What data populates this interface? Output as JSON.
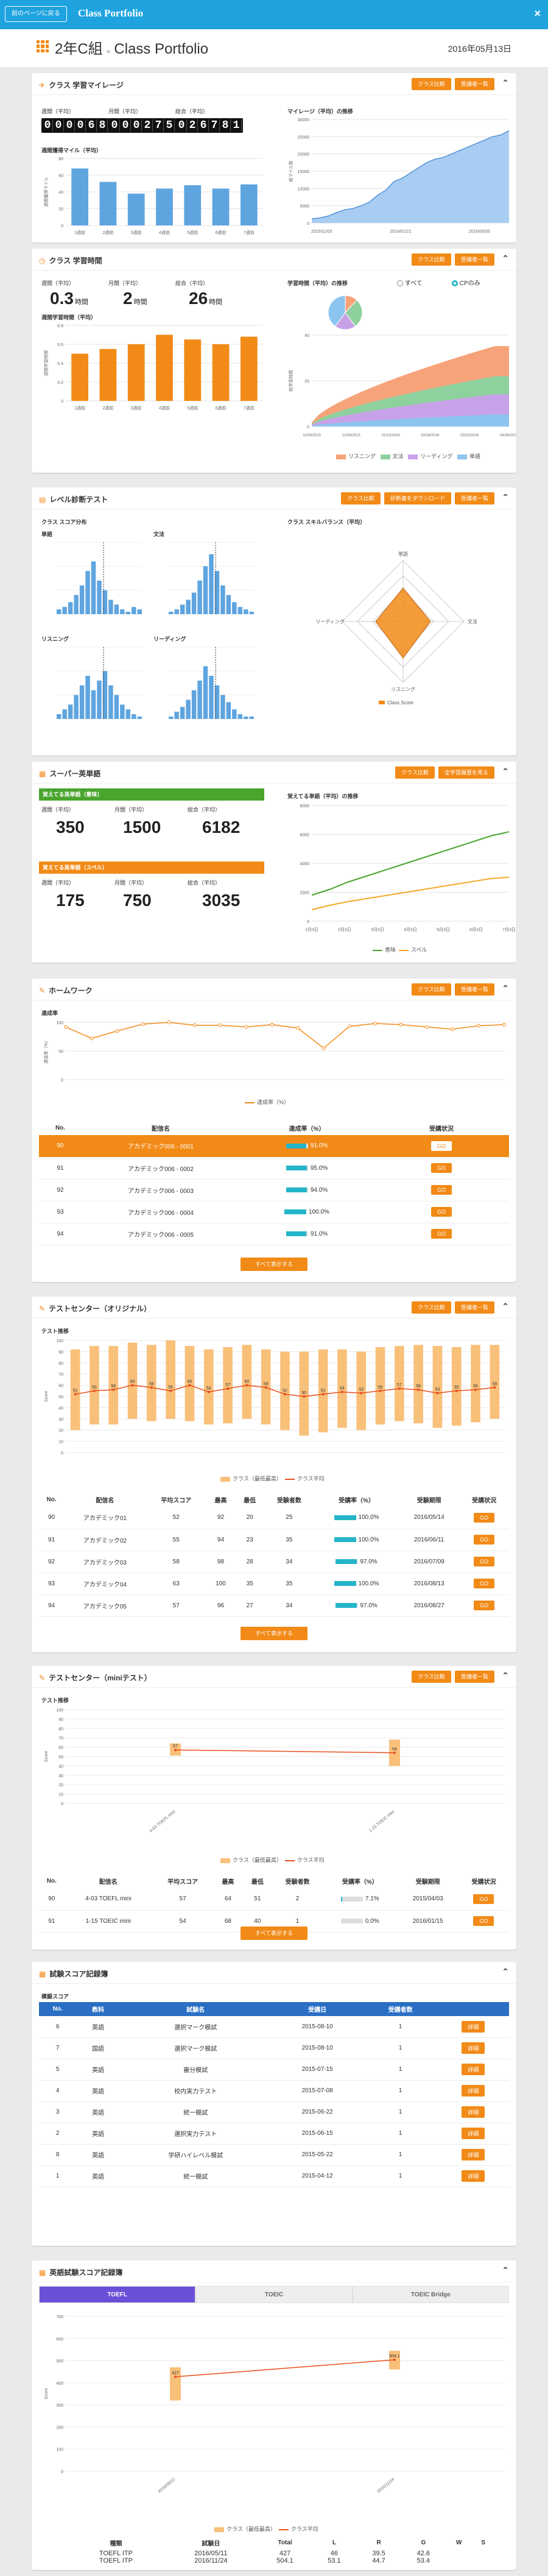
{
  "header": {
    "back": "前のページに戻る",
    "title": "Class Portfolio",
    "close": "×"
  },
  "page": {
    "class_name": "2年C組",
    "sep": "»",
    "portfolio": "Class Portfolio",
    "date": "2016年05月13日"
  },
  "mileage": {
    "title": "クラス 学習マイレージ",
    "btn1": "クラス比較",
    "btn2": "受講者一覧",
    "weekly_label": "週間（平均）",
    "monthly_label": "月間（平均）",
    "total_label": "総合（平均）",
    "weekly": "000068",
    "monthly": "000275",
    "total": "026781",
    "bar_title": "週間獲得マイル（平均）",
    "ylabel": "週間獲得マイル",
    "line_title": "マイレージ（平均）の推移",
    "line_ylabel": "総マイル数",
    "chart_data": {
      "type": "bar",
      "categories": [
        "1週前",
        "2週前",
        "3週前",
        "4週前",
        "5週前",
        "6週前",
        "7週前"
      ],
      "values": [
        68,
        52,
        38,
        44,
        48,
        44,
        49
      ],
      "ylim": [
        0,
        80
      ],
      "yticks": [
        "80",
        "60",
        "40",
        "20",
        "0"
      ]
    },
    "line_data": {
      "type": "area",
      "ylim": [
        0,
        30000
      ],
      "yticks": [
        "30000",
        "25000",
        "20000",
        "15000",
        "10000",
        "5000",
        "0"
      ],
      "xticks": [
        "2015/11/03",
        "2016/01/21",
        "2016/05/05"
      ],
      "y": [
        1200,
        1500,
        2000,
        3000,
        3800,
        4200,
        5000,
        6000,
        8000,
        9500,
        12000,
        13000,
        14500,
        16000,
        17500,
        18500,
        19000,
        20000,
        21000,
        22000,
        23000,
        24000,
        25000,
        25500,
        26781
      ]
    },
    "btn3": "クラス比較",
    "btn4": "受講者一覧"
  },
  "study": {
    "title": "クラス 学習時間",
    "btn1": "クラス比較",
    "btn2": "受講者一覧",
    "weekly_label": "週間（平均）",
    "monthly_label": "月間（平均）",
    "total_label": "総合（平均）",
    "weekly": "0.3",
    "monthly": "2",
    "total": "26",
    "unit": "時間",
    "bar_title": "週間学習時間（平均）",
    "ylabel": "週間学習時間",
    "chart_data": {
      "type": "bar",
      "categories": [
        "1週前",
        "2週前",
        "3週前",
        "4週前",
        "5週前",
        "6週前",
        "7週前"
      ],
      "values": [
        0.5,
        0.55,
        0.6,
        0.7,
        0.65,
        0.6,
        0.68
      ],
      "ylim": [
        0,
        0.8
      ],
      "yticks": [
        "0.8",
        "0.6",
        "0.4",
        "0.2",
        "0"
      ]
    },
    "trend_title": "学習時間（平均）の推移",
    "radio1": "すべて",
    "radio2": "CPのみ",
    "area_ylabel": "総学習時間",
    "area_data": {
      "type": "area",
      "xticks": [
        "11/03/2015",
        "12/08/2015",
        "01/12/2016",
        "02/16/2016",
        "03/22/2016",
        "04/26/2016"
      ],
      "ylim": [
        0,
        40
      ],
      "yticks": [
        "40",
        "20",
        "0"
      ]
    },
    "legend": [
      "リスニング",
      "文法",
      "リーディング",
      "単語"
    ]
  },
  "level": {
    "title": "レベル診断テスト",
    "btn1": "クラス比較",
    "btn2": "診断書をダウンロード",
    "btn3": "受講者一覧",
    "dist_title": "クラス スコア分布",
    "skills_title": "クラス スキルバランス（平均）",
    "sub": [
      "単語",
      "文法",
      "リスニング",
      "リーディング"
    ],
    "radar": {
      "axes": [
        "単語",
        "文法",
        "リスニング",
        "リーディング"
      ],
      "legend": "Class Score"
    }
  },
  "super": {
    "title": "スーパー英単語",
    "btn1": "クラス比較",
    "btn2": "全学習履歴を見る",
    "green_label": "覚えてる英単語（意味）",
    "orange_label": "覚えてる英単語（スペル）",
    "weekly_label": "週間（平均）",
    "monthly_label": "月間（平均）",
    "total_label": "総合（平均）",
    "m_weekly": "350",
    "m_monthly": "1500",
    "m_total": "6182",
    "s_weekly": "175",
    "s_monthly": "750",
    "s_total": "3035",
    "chart_title": "覚えてる単語（平均）の推移",
    "chart_data": {
      "type": "line",
      "ylim": [
        0,
        8000
      ],
      "yticks": [
        "8000",
        "6000",
        "4000",
        "2000",
        "0"
      ],
      "xticks": [
        "1月3日",
        "2月3日",
        "3月3日",
        "4月3日",
        "5月3日",
        "6月3日",
        "7月3日"
      ],
      "series": [
        {
          "name": "意味",
          "values": [
            1800,
            2200,
            2700,
            3100,
            3500,
            3900,
            4300,
            4700,
            5100,
            5500,
            5900,
            6182
          ]
        },
        {
          "name": "スペル",
          "values": [
            800,
            1100,
            1350,
            1550,
            1750,
            1950,
            2150,
            2350,
            2550,
            2750,
            2950,
            3035
          ]
        }
      ]
    }
  },
  "homework": {
    "title": "ホームワーク",
    "btn1": "クラス比較",
    "btn2": "受講者一覧",
    "chart_title": "達成率",
    "ylabel": "達成率（%）",
    "legend": "達成率（%）",
    "chart_data": {
      "type": "line",
      "ylim": [
        0,
        100
      ],
      "yticks": [
        "100",
        "50",
        "0"
      ],
      "values": [
        92,
        72,
        85,
        97,
        100,
        95,
        95,
        92,
        96,
        90,
        55,
        93,
        98,
        96,
        92,
        88,
        94,
        96
      ]
    },
    "cols": [
      "No.",
      "配信名",
      "達成率（%）",
      "受講状況"
    ],
    "rows": [
      {
        "no": "90",
        "name": "アカデミック006 - 0001",
        "rate": "91.0%",
        "pct": 91,
        "btn": "GO"
      },
      {
        "no": "91",
        "name": "アカデミック006 - 0002",
        "rate": "95.0%",
        "pct": 95,
        "btn": "GO"
      },
      {
        "no": "92",
        "name": "アカデミック006 - 0003",
        "rate": "94.0%",
        "pct": 94,
        "btn": "GO"
      },
      {
        "no": "93",
        "name": "アカデミック006 - 0004",
        "rate": "100.0%",
        "pct": 100,
        "btn": "GO"
      },
      {
        "no": "94",
        "name": "アカデミック006 - 0005",
        "rate": "91.0%",
        "pct": 91,
        "btn": "GO"
      }
    ],
    "showall": "すべて表示する"
  },
  "testcenter": {
    "title": "テストセンター（オリジナル）",
    "btn1": "クラス比較",
    "btn2": "受講者一覧",
    "chart_title": "テスト推移",
    "ylabel": "Score",
    "legend1": "クラス（最低最高）",
    "legend2": "クラス平均",
    "chart_data": {
      "type": "bar",
      "ylim": [
        0,
        100
      ],
      "avg": [
        52,
        55,
        56,
        60,
        58,
        55,
        60,
        54,
        57,
        60,
        58,
        52,
        50,
        52,
        54,
        53,
        55,
        57,
        56,
        53,
        55,
        56,
        58
      ],
      "low": [
        20,
        25,
        25,
        30,
        28,
        30,
        28,
        25,
        26,
        30,
        25,
        20,
        15,
        18,
        22,
        20,
        25,
        28,
        26,
        22,
        24,
        27,
        30
      ],
      "high": [
        92,
        95,
        95,
        98,
        96,
        100,
        95,
        92,
        94,
        96,
        92,
        90,
        90,
        92,
        92,
        90,
        94,
        95,
        96,
        95,
        94,
        96,
        96
      ]
    },
    "cols": [
      "No.",
      "配信名",
      "平均スコア",
      "最高",
      "最低",
      "受験者数",
      "受講率（%）",
      "受験期限",
      "受講状況"
    ],
    "rows": [
      {
        "no": "90",
        "name": "アカデミック01",
        "avg": "52",
        "max": "92",
        "min": "20",
        "count": "25",
        "rate": "100.0%",
        "pct": 100,
        "due": "2016/05/14",
        "btn": "GO"
      },
      {
        "no": "91",
        "name": "アカデミック02",
        "avg": "55",
        "max": "94",
        "min": "23",
        "count": "35",
        "rate": "100.0%",
        "pct": 100,
        "due": "2016/06/11",
        "btn": "GO"
      },
      {
        "no": "92",
        "name": "アカデミック03",
        "avg": "58",
        "max": "98",
        "min": "28",
        "count": "34",
        "rate": "97.0%",
        "pct": 97,
        "due": "2016/07/09",
        "btn": "GO"
      },
      {
        "no": "93",
        "name": "アカデミック04",
        "avg": "63",
        "max": "100",
        "min": "35",
        "count": "35",
        "rate": "100.0%",
        "pct": 100,
        "due": "2016/08/13",
        "btn": "GO"
      },
      {
        "no": "94",
        "name": "アカデミック05",
        "avg": "57",
        "max": "96",
        "min": "27",
        "count": "34",
        "rate": "97.0%",
        "pct": 97,
        "due": "2016/08/27",
        "btn": "GO"
      }
    ],
    "showall": "すべて表示する"
  },
  "mini": {
    "title": "テストセンター（miniテスト）",
    "btn1": "クラス比較",
    "btn2": "受講者一覧",
    "chart_title": "テスト推移",
    "ylabel": "Score",
    "legend1": "クラス（最低最高）",
    "legend2": "クラス平均",
    "chart_data": {
      "type": "bar",
      "ylim": [
        0,
        100
      ],
      "categories": [
        "4-03 TOEFL mini",
        "1-15 TOEIC mini"
      ],
      "avg": [
        57,
        54
      ],
      "low": [
        51,
        40
      ],
      "high": [
        64,
        68
      ]
    },
    "cols": [
      "No.",
      "配信名",
      "平均スコア",
      "最高",
      "最低",
      "受験者数",
      "受講率（%）",
      "受験期限",
      "受講状況"
    ],
    "rows": [
      {
        "no": "90",
        "name": "4-03 TOEFL mini",
        "avg": "57",
        "max": "64",
        "min": "51",
        "count": "2",
        "rate": "7.1%",
        "pct": 7,
        "due": "2015/04/03",
        "btn": "GO"
      },
      {
        "no": "91",
        "name": "1-15 TOEIC mini",
        "avg": "54",
        "max": "68",
        "min": "40",
        "count": "1",
        "rate": "0.0%",
        "pct": 0,
        "due": "2016/01/15",
        "btn": "GO"
      }
    ],
    "showall": "すべて表示する"
  },
  "scores": {
    "title": "試験スコア記録簿",
    "sub": "模擬スコア",
    "cols": [
      "No.",
      "教科",
      "試験名",
      "受講日",
      "受講者数",
      ""
    ],
    "rows": [
      {
        "no": "6",
        "subj": "英語",
        "name": "選択マーク模試",
        "date": "2015-08-10",
        "count": "1",
        "btn": "詳細"
      },
      {
        "no": "7",
        "subj": "国語",
        "name": "選択マーク模試",
        "date": "2015-08-10",
        "count": "1",
        "btn": "詳細"
      },
      {
        "no": "5",
        "subj": "英語",
        "name": "審分模試",
        "date": "2015-07-15",
        "count": "1",
        "btn": "詳細"
      },
      {
        "no": "4",
        "subj": "英語",
        "name": "校内実力テスト",
        "date": "2015-07-08",
        "count": "1",
        "btn": "詳細"
      },
      {
        "no": "3",
        "subj": "英語",
        "name": "統一模試",
        "date": "2015-06-22",
        "count": "1",
        "btn": "詳細"
      },
      {
        "no": "2",
        "subj": "英語",
        "name": "選択実力テスト",
        "date": "2015-06-15",
        "count": "1",
        "btn": "詳細"
      },
      {
        "no": "8",
        "subj": "英語",
        "name": "学研ハイレベル模試",
        "date": "2015-05-22",
        "count": "1",
        "btn": "詳細"
      },
      {
        "no": "1",
        "subj": "英語",
        "name": "統一模試",
        "date": "2015-04-12",
        "count": "1",
        "btn": "詳細"
      }
    ]
  },
  "english": {
    "title": "英語試験スコア記録簿",
    "tabs": [
      "TOEFL",
      "TOEIC",
      "TOEIC Bridge"
    ],
    "ylabel": "Score",
    "legend1": "クラス（最低最高）",
    "legend2": "クラス平均",
    "chart_data": {
      "type": "bar",
      "ylim": [
        0,
        700
      ],
      "yticks": [
        "700",
        "600",
        "500",
        "400",
        "300",
        "200",
        "100",
        "0"
      ],
      "categories": [
        "2016/05/11",
        "2016/11/24"
      ],
      "avg": [
        427,
        504.1
      ],
      "low": [
        320,
        460
      ],
      "high": [
        470,
        545
      ],
      "labels": [
        "427",
        "504.1"
      ]
    },
    "cols": [
      "種類",
      "試験日",
      "Total",
      "L",
      "R",
      "G",
      "W",
      "S"
    ],
    "rows": [
      {
        "type": "TOEFL ITP",
        "date": "2016/05/11",
        "total": "427",
        "l": "46",
        "r": "39.5",
        "g": "42.6",
        "w": "",
        "s": ""
      },
      {
        "type": "TOEFL ITP",
        "date": "2016/11/24",
        "total": "504.1",
        "l": "53.1",
        "r": "44.7",
        "g": "53.4",
        "w": "",
        "s": ""
      }
    ]
  }
}
